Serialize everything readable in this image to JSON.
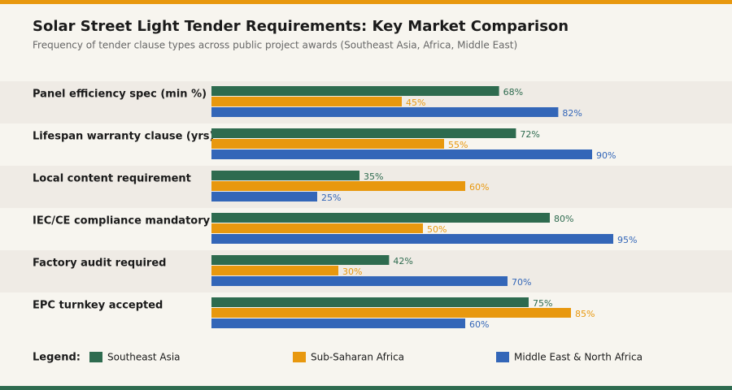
{
  "chart_data": {
    "type": "hbar",
    "title": "Solar Street Light Tender Requirements: Key Market Comparison",
    "subtitle": "Frequency of tender clause types across public project awards (Southeast Asia, Africa, Middle East)",
    "categories": [
      "Panel efficiency spec (min %)",
      "Lifespan warranty clause (yrs)",
      "Local content requirement",
      "IEC/CE compliance mandatory",
      "Factory audit required",
      "EPC turnkey accepted"
    ],
    "series": [
      {
        "name": "Southeast Asia",
        "color": "#2e6b4f",
        "values": [
          68,
          72,
          35,
          80,
          42,
          75
        ],
        "value_labels": [
          "68%",
          "72%",
          "35%",
          "80%",
          "42%",
          "75%"
        ]
      },
      {
        "name": "Sub-Saharan Africa",
        "color": "#e8980e",
        "values": [
          45,
          55,
          60,
          50,
          30,
          85
        ],
        "value_labels": [
          "45%",
          "55%",
          "60%",
          "50%",
          "30%",
          "85%"
        ]
      },
      {
        "name": "Middle East & North Africa",
        "color": "#3366b8",
        "values": [
          82,
          90,
          25,
          95,
          70,
          60
        ],
        "value_labels": [
          "82%",
          "90%",
          "25%",
          "95%",
          "70%",
          "60%"
        ]
      }
    ],
    "xlim": [
      0,
      100
    ],
    "legend_label": "Legend:"
  }
}
